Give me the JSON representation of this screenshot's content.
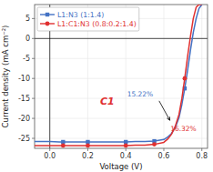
{
  "chart_data": {
    "type": "line",
    "xlabel": "Voltage (V)",
    "ylabel": "Current density (mA cm⁻²)",
    "xlim": [
      -0.08,
      0.83
    ],
    "ylim": [
      -27.5,
      8.5
    ],
    "xticks": [
      {
        "value": 0.0,
        "label": "0.0"
      },
      0.2,
      0.4,
      0.6,
      0.8
    ],
    "yticks": [
      5,
      0,
      -5,
      -10,
      -15,
      -20,
      -25
    ],
    "legend": "upper left",
    "series": [
      {
        "name": "L1:N3 (1:1.4)",
        "color": "#4472C4",
        "line_style": "solid",
        "x": [
          -0.08,
          0.0,
          0.05,
          0.1,
          0.15,
          0.2,
          0.25,
          0.3,
          0.35,
          0.4,
          0.45,
          0.5,
          0.55,
          0.6,
          0.62,
          0.64,
          0.66,
          0.68,
          0.695,
          0.71,
          0.725,
          0.74,
          0.755,
          0.77,
          0.785,
          0.8
        ],
        "values": [
          -25.8,
          -25.8,
          -25.9,
          -25.9,
          -25.9,
          -25.9,
          -25.9,
          -25.9,
          -25.9,
          -25.9,
          -25.8,
          -25.8,
          -25.7,
          -25.3,
          -24.7,
          -23.8,
          -22.3,
          -19.8,
          -16.5,
          -12.5,
          -8.0,
          -3.0,
          1.5,
          5.0,
          7.5,
          8.5
        ]
      },
      {
        "type": "scatter",
        "color": "#4472C4",
        "marker": "square",
        "x": [
          0.07,
          0.2,
          0.4,
          0.55,
          0.71
        ],
        "values": [
          -25.9,
          -25.9,
          -25.9,
          -25.7,
          -12.5
        ]
      },
      {
        "name": "L1:C1:N3 (0.8:0.2:1.4)",
        "color": "#E03030",
        "line_style": "solid",
        "x": [
          -0.08,
          0.0,
          0.05,
          0.1,
          0.15,
          0.2,
          0.25,
          0.3,
          0.35,
          0.4,
          0.45,
          0.5,
          0.55,
          0.6,
          0.62,
          0.64,
          0.66,
          0.68,
          0.695,
          0.71,
          0.725,
          0.74,
          0.755,
          0.77,
          0.785,
          0.8
        ],
        "values": [
          -26.8,
          -26.8,
          -26.8,
          -26.8,
          -26.8,
          -26.8,
          -26.8,
          -26.8,
          -26.8,
          -26.8,
          -26.7,
          -26.7,
          -26.5,
          -26.0,
          -25.2,
          -24.0,
          -22.0,
          -19.0,
          -15.0,
          -10.0,
          -4.5,
          0.5,
          5.0,
          7.8,
          8.5,
          8.5
        ]
      },
      {
        "type": "scatter",
        "color": "#E03030",
        "marker": "circle",
        "x": [
          0.07,
          0.2,
          0.4,
          0.55,
          0.71
        ],
        "values": [
          -26.8,
          -26.8,
          -26.8,
          -26.5,
          -10.0
        ]
      }
    ],
    "annotations": [
      {
        "text": "15.22%",
        "color": "#4472C4"
      },
      {
        "text": "16.32%",
        "color": "#E03030"
      },
      {
        "text": "C1",
        "color": "#E03030"
      }
    ]
  }
}
